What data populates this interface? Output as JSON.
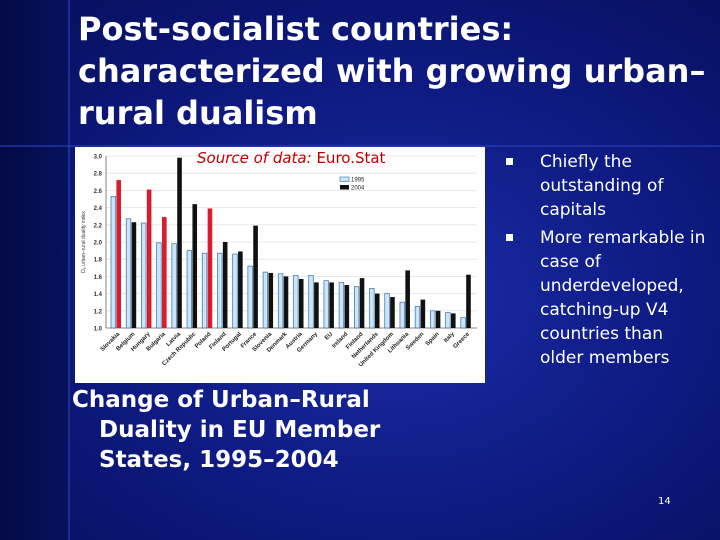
{
  "slide": {
    "title_lines": [
      "Post-socialist countries:",
      "characterized with growing urban–",
      "rural dualism"
    ],
    "source_label": "Source of data:",
    "source_value": " Euro.Stat",
    "bullets": [
      {
        "lines": [
          "Chiefly the",
          "outstanding of",
          "capitals"
        ]
      },
      {
        "lines": [
          "More remarkable in",
          "case of",
          "underdeveloped,",
          "catching-up V4",
          "countries than",
          "older members"
        ]
      }
    ],
    "caption_lines": [
      "Change of Urban–Rural",
      "Duality in EU Member",
      "States, 1995–2004"
    ],
    "page_number": "14",
    "colors": {
      "bar_1995_fill": "#cce4f5",
      "bar_1995_stroke": "#2f6fb0",
      "bar_highlight": "#d81c2c",
      "bar_2004": "#111111",
      "background": "#0f1c86"
    }
  },
  "chart_data": {
    "type": "bar",
    "ylabel": "Dₐ urban–rural duality index",
    "ylim": [
      1.0,
      3.0
    ],
    "yticks": [
      "1.0",
      "1.2",
      "1.4",
      "1.6",
      "1.8",
      "2.0",
      "2.2",
      "2.4",
      "2.6",
      "2.8",
      "3.0"
    ],
    "grid": true,
    "legend_position": "right",
    "categories": [
      "Slovakia",
      "Belgium",
      "Hungary",
      "Bulgaria",
      "Latvia",
      "Czech Republic",
      "Poland",
      "Finland",
      "Portugal",
      "France",
      "Slovenia",
      "Denmark",
      "Austria",
      "Germany",
      "EU",
      "Ireland",
      "Finland",
      "Netherlands",
      "United Kingdom",
      "Lithuania",
      "Sweden",
      "Spain",
      "Italy",
      "Greece"
    ],
    "highlighted": [
      true,
      false,
      true,
      true,
      false,
      false,
      true,
      false,
      false,
      false,
      false,
      false,
      false,
      false,
      false,
      false,
      false,
      false,
      false,
      false,
      false,
      false,
      false,
      false
    ],
    "series": [
      {
        "name": "1995",
        "values": [
          2.53,
          2.27,
          2.22,
          1.99,
          1.98,
          1.9,
          1.87,
          1.87,
          1.86,
          1.72,
          1.65,
          1.63,
          1.61,
          1.61,
          1.55,
          1.53,
          1.48,
          1.46,
          1.4,
          1.3,
          1.25,
          1.2,
          1.18,
          1.12
        ]
      },
      {
        "name": "2004",
        "values": [
          2.72,
          2.23,
          2.61,
          2.29,
          2.98,
          2.44,
          2.39,
          2.0,
          1.89,
          2.19,
          1.64,
          1.6,
          1.57,
          1.53,
          1.53,
          1.5,
          1.58,
          1.4,
          1.36,
          1.67,
          1.33,
          1.2,
          1.17,
          1.62
        ]
      }
    ]
  }
}
